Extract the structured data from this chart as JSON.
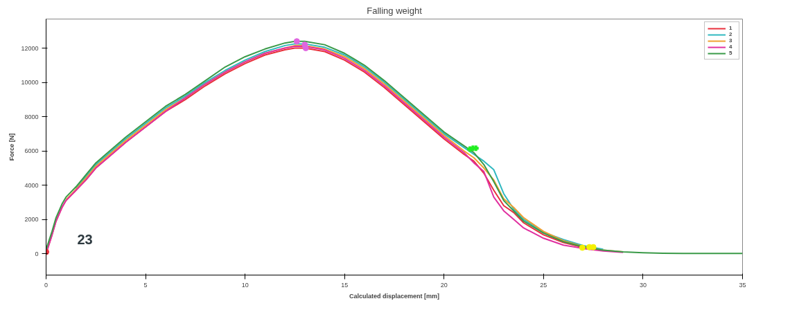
{
  "chart_data": {
    "type": "line",
    "title": "Falling weight",
    "xlabel": "Calculated displacement [mm]",
    "ylabel": "Force [N]",
    "xlim": [
      0,
      35
    ],
    "xticks": [
      0,
      5,
      10,
      15,
      20,
      25,
      30,
      35
    ],
    "ylim": [
      -1250,
      13700
    ],
    "yticks": [
      0,
      2000,
      4000,
      6000,
      8000,
      10000,
      12000
    ],
    "grid": false,
    "legend": "top right",
    "marker": "none",
    "line_style": "solid",
    "annotations": [
      "23"
    ],
    "x": [
      0,
      0.3,
      0.5,
      0.8,
      1,
      1.5,
      2,
      2.5,
      3,
      4,
      5,
      6,
      7,
      8,
      9,
      10,
      11,
      12,
      12.5,
      13,
      14,
      15,
      16,
      17,
      18,
      19,
      20,
      21,
      21.5,
      22,
      22.5,
      23,
      23.5,
      24,
      25,
      26,
      27,
      28,
      29,
      30,
      31,
      32,
      35
    ],
    "series": [
      {
        "name": "1",
        "color": "#e8303c",
        "values": [
          0,
          1100,
          1900,
          2700,
          3100,
          3700,
          4300,
          5000,
          5500,
          6500,
          7400,
          8300,
          9000,
          9800,
          10500,
          11100,
          11600,
          11900,
          12000,
          12000,
          11800,
          11300,
          10600,
          9700,
          8700,
          7700,
          6700,
          5800,
          5400,
          4700,
          3700,
          2800,
          2400,
          1800,
          1100,
          650,
          350,
          180,
          null,
          null,
          null,
          null,
          null
        ]
      },
      {
        "name": "2",
        "color": "#30b8c0",
        "values": [
          null,
          null,
          null,
          null,
          null,
          3800,
          4500,
          5200,
          5700,
          6700,
          7600,
          8500,
          9200,
          10000,
          10700,
          11300,
          11800,
          12150,
          12250,
          12250,
          12050,
          11600,
          10900,
          10000,
          9000,
          8000,
          7000,
          6200,
          5800,
          5400,
          4900,
          3500,
          2600,
          2000,
          1250,
          820,
          470,
          260,
          null,
          null,
          null,
          null,
          null
        ]
      },
      {
        "name": "3",
        "color": "#f0a030",
        "values": [
          null,
          null,
          null,
          null,
          3150,
          3750,
          4400,
          5100,
          5600,
          6600,
          7500,
          8400,
          9100,
          9900,
          10600,
          11200,
          11700,
          12000,
          12150,
          12150,
          11950,
          11500,
          10800,
          9900,
          8900,
          7900,
          6900,
          6000,
          5600,
          5000,
          4300,
          3200,
          2700,
          2100,
          1300,
          750,
          420,
          200,
          100,
          null,
          null,
          null,
          null
        ]
      },
      {
        "name": "4",
        "color": "#e030a0",
        "values": [
          0,
          1100,
          1900,
          2700,
          3100,
          3700,
          4300,
          5000,
          5500,
          6500,
          7400,
          8300,
          9100,
          9900,
          10600,
          11200,
          11700,
          12000,
          12100,
          12100,
          11900,
          11400,
          10700,
          9800,
          8800,
          7800,
          6800,
          5900,
          5300,
          4800,
          3300,
          2500,
          2000,
          1500,
          900,
          500,
          300,
          150,
          70,
          null,
          null,
          null,
          null
        ]
      },
      {
        "name": "5",
        "color": "#3a9a48",
        "values": [
          250,
          1300,
          2100,
          2900,
          3300,
          3900,
          4600,
          5300,
          5800,
          6800,
          7700,
          8600,
          9300,
          10100,
          10900,
          11500,
          11950,
          12300,
          12400,
          12400,
          12200,
          11700,
          11000,
          10100,
          9100,
          8100,
          7100,
          6300,
          5900,
          5200,
          4200,
          3100,
          2500,
          1900,
          1200,
          700,
          400,
          200,
          100,
          50,
          20,
          10,
          10
        ]
      },
      {
        "type": "scatter",
        "color": "#e066e0",
        "marker": "circle",
        "x": [
          12.6,
          13.0,
          13.05
        ],
        "values": [
          12400,
          12200,
          12000
        ]
      },
      {
        "type": "scatter",
        "color": "#22ee22",
        "marker": "cross",
        "x": [
          21.3,
          21.45,
          21.6
        ],
        "values": [
          6100,
          6150,
          6150
        ]
      },
      {
        "type": "scatter",
        "color": "#e8303c",
        "marker": "circle",
        "x": [
          0
        ],
        "values": [
          100
        ]
      },
      {
        "type": "scatter",
        "color": "#f4f000",
        "marker": "circle",
        "x": [
          26.95,
          27.3,
          27.5
        ],
        "values": [
          350,
          380,
          380
        ]
      }
    ]
  }
}
